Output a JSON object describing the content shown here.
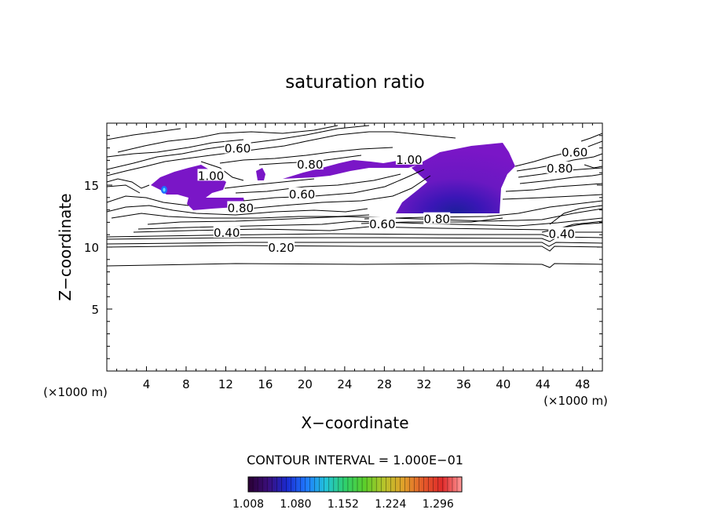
{
  "chart_data": {
    "type": "contour",
    "title": "saturation ratio",
    "xlabel": "X−coordinate",
    "ylabel": "Z−coordinate",
    "x_unit_label": "(×1000 m)",
    "z_unit_label": "(×1000 m)",
    "xlim": [
      0,
      50
    ],
    "ylim": [
      0,
      20
    ],
    "x_ticks": [
      4,
      8,
      12,
      16,
      20,
      24,
      28,
      32,
      36,
      40,
      44,
      48
    ],
    "x_tick_labels": [
      "4",
      "8",
      "12",
      "16",
      "20",
      "24",
      "28",
      "32",
      "36",
      "40",
      "44",
      "48"
    ],
    "y_ticks": [
      5,
      10,
      15
    ],
    "y_tick_labels": [
      "5",
      "10",
      "15"
    ],
    "contour_interval_text": "CONTOUR INTERVAL = 1.000E−01",
    "contour_labels": [
      {
        "text": "0.60",
        "x": 13.2,
        "z": 18.0
      },
      {
        "text": "0.80",
        "x": 20.5,
        "z": 16.7
      },
      {
        "text": "1.00",
        "x": 30.5,
        "z": 17.1
      },
      {
        "text": "1.00",
        "x": 10.5,
        "z": 15.8
      },
      {
        "text": "0.60",
        "x": 19.7,
        "z": 14.3
      },
      {
        "text": "0.80",
        "x": 13.5,
        "z": 13.2
      },
      {
        "text": "0.40",
        "x": 12.1,
        "z": 11.2
      },
      {
        "text": "0.20",
        "x": 17.6,
        "z": 10.0
      },
      {
        "text": "0.60",
        "x": 27.8,
        "z": 11.9
      },
      {
        "text": "0.80",
        "x": 33.3,
        "z": 12.3
      },
      {
        "text": "0.60",
        "x": 47.2,
        "z": 17.7
      },
      {
        "text": "0.80",
        "x": 45.7,
        "z": 16.4
      },
      {
        "text": "0.40",
        "x": 45.9,
        "z": 11.1
      }
    ],
    "colorbar": {
      "tick_labels": [
        "1.008",
        "1.080",
        "1.152",
        "1.224",
        "1.296"
      ],
      "range": [
        1.008,
        1.332
      ],
      "colors": [
        "#2a0033",
        "#3b0e7a",
        "#1a2ad0",
        "#1f7bff",
        "#22c4d8",
        "#2fd06a",
        "#5ccf2a",
        "#b8c42b",
        "#e0a02a",
        "#e45a2a",
        "#e02a2a",
        "#ff9a9a"
      ]
    },
    "fill_color_main": "#7a16c7",
    "fill_color_dark": "#5a10a8"
  }
}
